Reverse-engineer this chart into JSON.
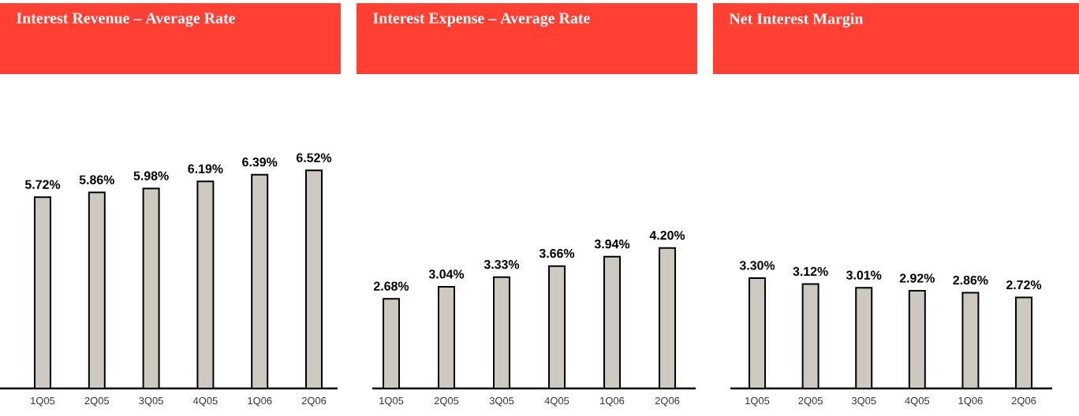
{
  "chart_data": [
    {
      "type": "bar",
      "title": "Interest Revenue – Average Rate",
      "categories": [
        "1Q05",
        "2Q05",
        "3Q05",
        "4Q05",
        "1Q06",
        "2Q06"
      ],
      "values": [
        5.72,
        5.86,
        5.98,
        6.19,
        6.39,
        6.52
      ],
      "value_labels": [
        "5.72%",
        "5.86%",
        "5.98%",
        "6.19%",
        "6.39%",
        "6.52%"
      ],
      "color": "#cdc9c0",
      "tick_labels": "x"
    },
    {
      "type": "bar",
      "title": "Interest Expense – Average Rate",
      "categories": [
        "1Q05",
        "2Q05",
        "3Q05",
        "4Q05",
        "1Q06",
        "2Q06"
      ],
      "values": [
        2.68,
        3.04,
        3.33,
        3.66,
        3.94,
        4.2
      ],
      "value_labels": [
        "2.68%",
        "3.04%",
        "3.33%",
        "3.66%",
        "3.94%",
        "4.20%"
      ],
      "color": "#cdc9c0",
      "tick_labels": "x"
    },
    {
      "type": "bar",
      "title": "Net Interest Margin",
      "categories": [
        "1Q05",
        "2Q05",
        "3Q05",
        "4Q05",
        "1Q06",
        "2Q06"
      ],
      "values": [
        3.3,
        3.12,
        3.01,
        2.92,
        2.86,
        2.72
      ],
      "value_labels": [
        "3.30%",
        "3.12%",
        "3.01%",
        "2.92%",
        "2.86%",
        "2.72%"
      ],
      "color": "#cdc9c0",
      "tick_labels": "x"
    }
  ]
}
